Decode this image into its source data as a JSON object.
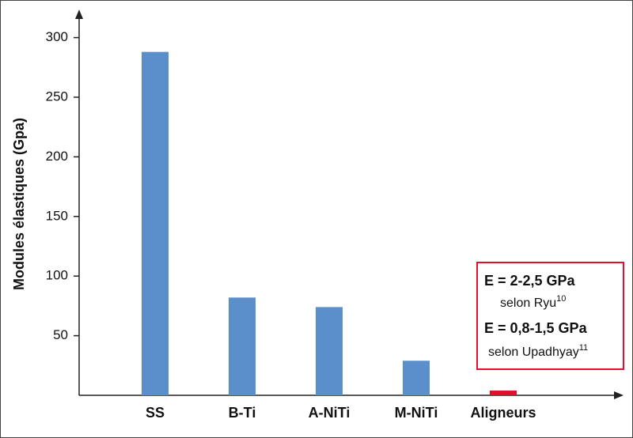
{
  "chart_data": {
    "type": "bar",
    "y_label": "Modules élastiques (Gpa)",
    "categories": [
      "SS",
      "B-Ti",
      "A-NiTi",
      "M-NiTi",
      "Aligneurs"
    ],
    "values": [
      288,
      82,
      74,
      29,
      4
    ],
    "colors": [
      "#5b8fcc",
      "#5b8fcc",
      "#5b8fcc",
      "#5b8fcc",
      "#e0102a"
    ],
    "ylim": [
      0,
      320
    ],
    "yticks": [
      50,
      100,
      150,
      200,
      250,
      300
    ],
    "annotations": {
      "line1": "E = 2-2,5 GPa",
      "line2": "selon Ryu",
      "ref2": "10",
      "line3": "E = 0,8-1,5 GPa",
      "line4": "selon Upadhyay",
      "ref4": "11"
    }
  }
}
